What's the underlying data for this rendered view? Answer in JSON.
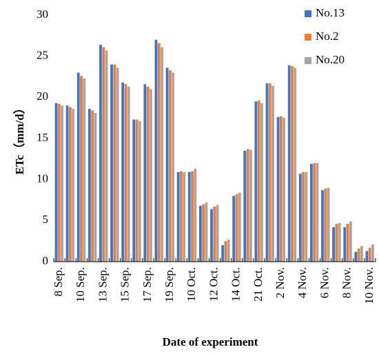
{
  "chart_data": {
    "type": "bar",
    "y_label": "ETc（mm/d）",
    "x_label": "Date of experiment",
    "categories": [
      "8 Sep.",
      null,
      "10 Sep.",
      null,
      "13 Sep.",
      null,
      "15 Sep.",
      null,
      "17 Sep.",
      null,
      "19 Sep.",
      null,
      "10 Oct.",
      null,
      "12 Oct.",
      null,
      "14 Oct.",
      null,
      "21 Oct.",
      null,
      "2 Nov.",
      null,
      "4 Nov.",
      null,
      "6 Nov.",
      null,
      "8 Nov.",
      null,
      "10 Nov."
    ],
    "series": [
      {
        "name": "No.13",
        "color": "#4472c4",
        "values": [
          19.3,
          19.0,
          23.0,
          18.6,
          26.4,
          24.0,
          21.8,
          17.3,
          21.6,
          27.0,
          23.6,
          10.9,
          10.9,
          6.8,
          6.4,
          2.0,
          8.0,
          13.5,
          19.5,
          21.7,
          17.6,
          23.9,
          10.7,
          11.9,
          8.7,
          4.2,
          4.2,
          1.2,
          1.3
        ]
      },
      {
        "name": "No.2",
        "color": "#ed7d31",
        "values": [
          19.2,
          18.8,
          22.6,
          18.4,
          26.1,
          24.0,
          21.6,
          17.3,
          21.3,
          26.6,
          23.3,
          11.0,
          11.0,
          7.0,
          6.7,
          2.5,
          8.2,
          13.7,
          19.6,
          21.7,
          17.7,
          23.8,
          10.9,
          12.0,
          8.9,
          4.6,
          4.6,
          1.6,
          1.7
        ]
      },
      {
        "name": "No.20",
        "color": "#a5a5a5",
        "values": [
          19.0,
          18.6,
          22.3,
          18.1,
          25.7,
          23.6,
          21.3,
          17.1,
          21.0,
          26.1,
          23.0,
          10.9,
          11.3,
          7.2,
          6.9,
          2.7,
          8.4,
          13.6,
          19.3,
          21.4,
          17.5,
          23.6,
          10.9,
          12.0,
          9.0,
          4.7,
          4.9,
          1.9,
          2.1
        ]
      }
    ],
    "ylim": [
      0,
      30
    ],
    "yticks": [
      0,
      5,
      10,
      15,
      20,
      25,
      30
    ],
    "legend": "top-right"
  }
}
